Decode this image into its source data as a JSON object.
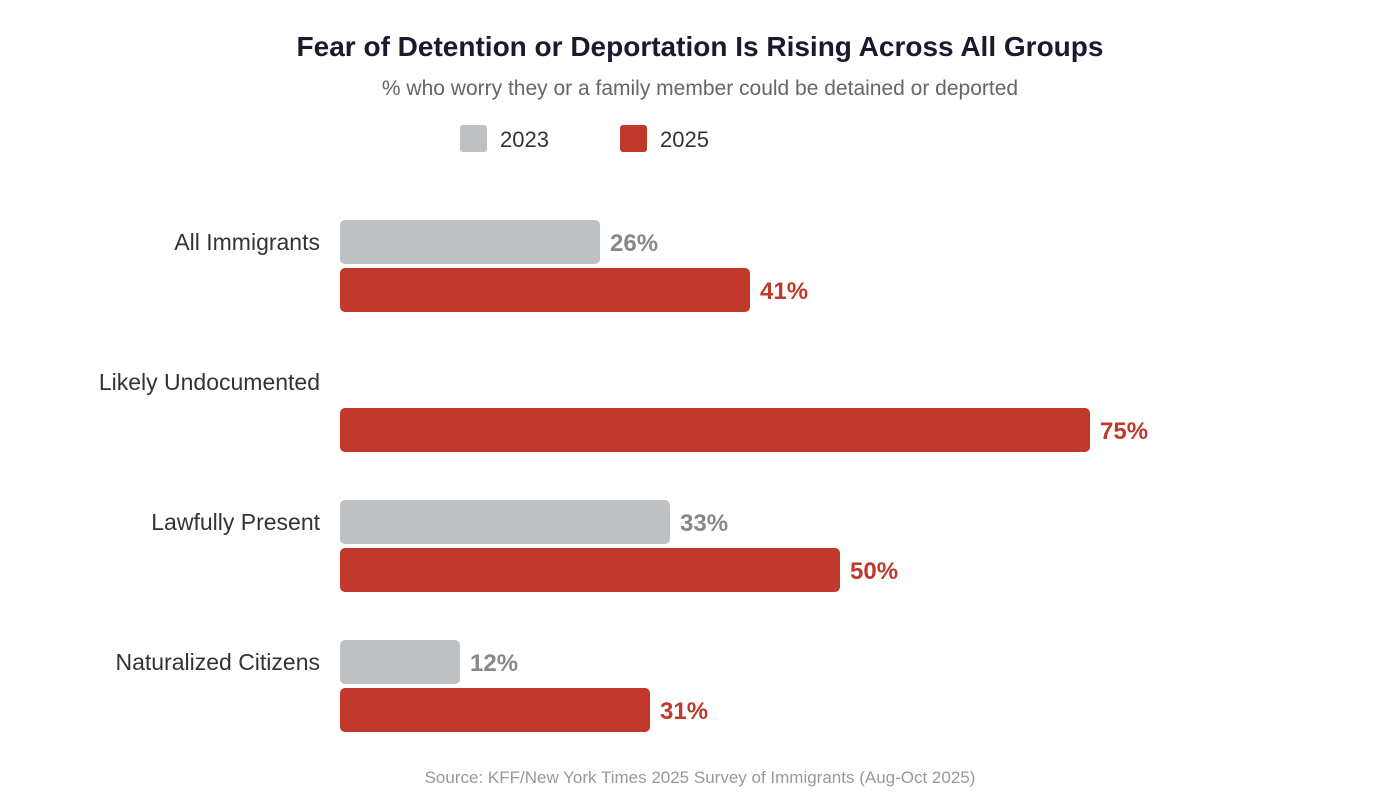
{
  "chart_data": {
    "type": "bar",
    "orientation": "horizontal",
    "title": "Fear of Detention or Deportation Is Rising Across All Groups",
    "subtitle": "% who worry they or a family member could be detained or deported",
    "categories": [
      "All Immigrants",
      "Likely Undocumented",
      "Lawfully Present",
      "Naturalized Citizens"
    ],
    "series": [
      {
        "name": "2023",
        "color": "#bdc1c4",
        "label_color": "#888888",
        "values": [
          26,
          null,
          33,
          12
        ],
        "labels": [
          "26%",
          "",
          "33%",
          "12%"
        ]
      },
      {
        "name": "2025",
        "color": "#c0392b",
        "label_color": "#c0392b",
        "values": [
          41,
          75,
          50,
          31
        ],
        "labels": [
          "41%",
          "75%",
          "50%",
          "31%"
        ]
      }
    ],
    "xlim": [
      0,
      100
    ],
    "grid": false,
    "legend": "top-center",
    "source": "Source: KFF/New York Times 2025 Survey of Immigrants (Aug-Oct 2025)"
  }
}
